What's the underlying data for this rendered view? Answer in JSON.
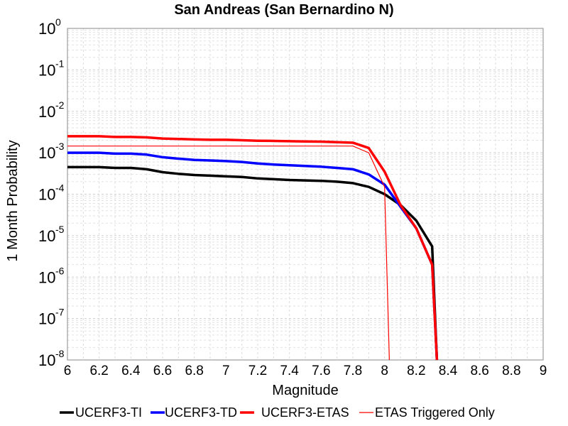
{
  "chart_data": {
    "type": "line",
    "title": "San Andreas (San Bernardino N)",
    "xlabel": "Magnitude",
    "ylabel": "1 Month Probability",
    "xlim": [
      6,
      9
    ],
    "ylim": [
      1e-08,
      1
    ],
    "yscale": "log",
    "grid": true,
    "legend_position": "bottom",
    "x_tick_labels": [
      "6",
      "6.2",
      "6.4",
      "6.6",
      "6.8",
      "7",
      "7.2",
      "7.4",
      "7.6",
      "7.8",
      "8",
      "8.2",
      "8.4",
      "8.6",
      "8.8",
      "9"
    ],
    "y_tick_labels": [
      {
        "base": "10",
        "exp": "0"
      },
      {
        "base": "10",
        "exp": "-1"
      },
      {
        "base": "10",
        "exp": "-2"
      },
      {
        "base": "10",
        "exp": "-3"
      },
      {
        "base": "10",
        "exp": "-4"
      },
      {
        "base": "10",
        "exp": "-5"
      },
      {
        "base": "10",
        "exp": "-6"
      },
      {
        "base": "10",
        "exp": "-7"
      },
      {
        "base": "10",
        "exp": "-8"
      }
    ],
    "series": [
      {
        "name": "UCERF3-TI",
        "color": "#000000",
        "width": "thick",
        "x": [
          6.0,
          6.1,
          6.2,
          6.3,
          6.4,
          6.5,
          6.6,
          6.7,
          6.8,
          6.9,
          7.0,
          7.1,
          7.2,
          7.3,
          7.4,
          7.5,
          7.6,
          7.7,
          7.8,
          7.9,
          8.0,
          8.1,
          8.2,
          8.3,
          8.33
        ],
        "y": [
          0.00045,
          0.00045,
          0.00045,
          0.00043,
          0.00043,
          0.0004,
          0.00034,
          0.00031,
          0.00029,
          0.00028,
          0.00027,
          0.00026,
          0.00024,
          0.00023,
          0.00022,
          0.000215,
          0.00021,
          0.0002,
          0.000185,
          0.00015,
          0.0001,
          5.5e-05,
          2.3e-05,
          5.5e-06,
          1e-08
        ]
      },
      {
        "name": "UCERF3-TD",
        "color": "#0000ff",
        "width": "thick",
        "x": [
          6.0,
          6.1,
          6.2,
          6.3,
          6.4,
          6.5,
          6.6,
          6.7,
          6.8,
          6.9,
          7.0,
          7.1,
          7.2,
          7.3,
          7.4,
          7.5,
          7.6,
          7.7,
          7.8,
          7.9,
          8.0,
          8.1,
          8.2,
          8.3,
          8.33
        ],
        "y": [
          0.001,
          0.001,
          0.001,
          0.00095,
          0.00095,
          0.0009,
          0.00078,
          0.00072,
          0.00067,
          0.00065,
          0.00063,
          0.0006,
          0.00055,
          0.00052,
          0.0005,
          0.00048,
          0.00046,
          0.00043,
          0.0004,
          0.0003,
          0.00017,
          5e-05,
          1.5e-05,
          2e-06,
          1e-08
        ]
      },
      {
        "name": "UCERF3-ETAS",
        "color": "#ff0000",
        "width": "thick",
        "x": [
          6.0,
          6.1,
          6.2,
          6.3,
          6.4,
          6.5,
          6.6,
          6.7,
          6.8,
          6.9,
          7.0,
          7.1,
          7.2,
          7.3,
          7.4,
          7.5,
          7.6,
          7.7,
          7.8,
          7.9,
          8.0,
          8.1,
          8.2,
          8.3,
          8.33
        ],
        "y": [
          0.0025,
          0.0025,
          0.0025,
          0.0024,
          0.0024,
          0.00235,
          0.0022,
          0.00215,
          0.0021,
          0.00205,
          0.00205,
          0.002,
          0.00195,
          0.00193,
          0.0019,
          0.00187,
          0.00185,
          0.0018,
          0.00175,
          0.0013,
          0.00035,
          5.5e-05,
          1.5e-05,
          2e-06,
          1e-08
        ]
      },
      {
        "name": "ETAS Triggered Only",
        "color": "#ff0000",
        "width": "thin",
        "x": [
          6.0,
          6.2,
          6.4,
          6.6,
          6.8,
          7.0,
          7.2,
          7.4,
          7.6,
          7.8,
          7.9,
          8.0,
          8.03
        ],
        "y": [
          0.00145,
          0.00145,
          0.00145,
          0.00145,
          0.00145,
          0.00145,
          0.00145,
          0.00145,
          0.00145,
          0.00145,
          0.001,
          0.00015,
          1e-08
        ]
      }
    ]
  }
}
